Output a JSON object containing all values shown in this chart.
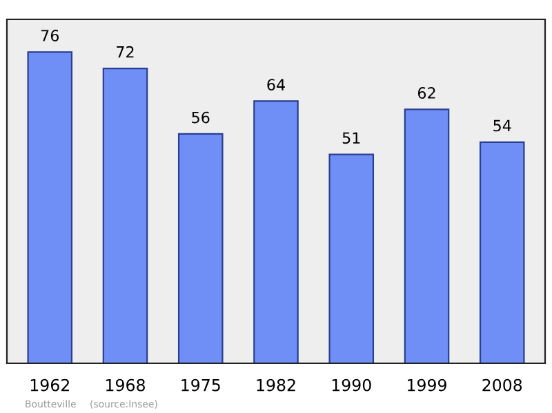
{
  "chart_data": {
    "type": "bar",
    "categories": [
      "1962",
      "1968",
      "1975",
      "1982",
      "1990",
      "1999",
      "2008"
    ],
    "values": [
      76,
      72,
      56,
      64,
      51,
      62,
      54
    ],
    "color": "#6f8ff7",
    "data_labels": true,
    "grid": false,
    "annotations": [
      "Boutteville",
      "(source:Insee)"
    ]
  }
}
